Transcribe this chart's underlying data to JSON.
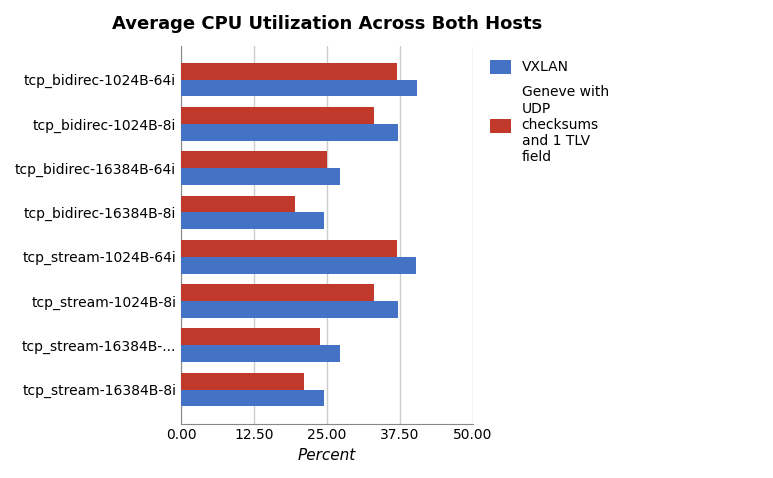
{
  "title": "Average CPU Utilization Across Both Hosts",
  "xlabel": "Percent",
  "categories": [
    "tcp_bidirec-1024B-64i",
    "tcp_bidirec-1024B-8i",
    "tcp_bidirec-16384B-64i",
    "tcp_bidirec-16384B-8i",
    "tcp_stream-1024B-64i",
    "tcp_stream-1024B-8i",
    "tcp_stream-16384B-...",
    "tcp_stream-16384B-8i"
  ],
  "vxlan_values": [
    40.5,
    37.2,
    27.2,
    24.5,
    40.3,
    37.2,
    27.2,
    24.5
  ],
  "geneve_values": [
    37.0,
    33.0,
    25.0,
    19.5,
    37.0,
    33.0,
    23.8,
    21.0
  ],
  "vxlan_color": "#4472c4",
  "geneve_color": "#c0392b",
  "legend_labels": [
    "VXLAN",
    "Geneve with\nUDP\nchecksums\nand 1 TLV\nfield"
  ],
  "xlim": [
    0,
    50
  ],
  "xticks": [
    0.0,
    12.5,
    25.0,
    37.5,
    50.0
  ],
  "xtick_labels": [
    "0.00",
    "12.50",
    "25.00",
    "37.50",
    "50.00"
  ],
  "title_fontsize": 13,
  "label_fontsize": 11,
  "tick_fontsize": 10,
  "bar_height": 0.38,
  "fig_bg_color": "#ffffff",
  "plot_bg_color": "#ffffff",
  "grid_color": "#cccccc"
}
